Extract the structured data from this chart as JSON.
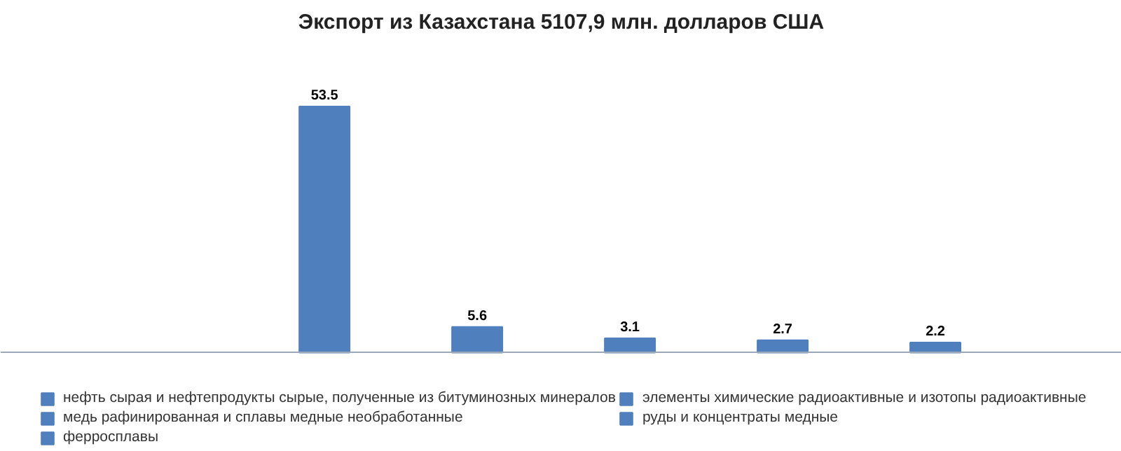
{
  "chart_data": {
    "type": "bar",
    "title": "Экспорт из Казахстана 5107,9 млн. долларов США",
    "categories": [
      null,
      null,
      null,
      null,
      null
    ],
    "stacked": true,
    "series": [
      {
        "name": "нефть сырая и нефтепродукты сырые, полученные из битуминозных минералов",
        "color": "#4f7fbd",
        "values": [
          53.5,
          null,
          null,
          null,
          null
        ]
      },
      {
        "name": "элементы химические радиоактивные и изотопы радиоактивные",
        "color": "#4f7fbd",
        "values": [
          null,
          5.6,
          null,
          null,
          null
        ]
      },
      {
        "name": "медь рафинированная и сплавы медные необработанные",
        "color": "#4f7fbd",
        "values": [
          null,
          null,
          3.1,
          null,
          null
        ]
      },
      {
        "name": "руды и концентраты медные",
        "color": "#4f7fbd",
        "values": [
          null,
          null,
          null,
          2.7,
          null
        ]
      },
      {
        "name": "ферросплавы",
        "color": "#4f7fbd",
        "values": [
          null,
          null,
          null,
          null,
          2.2
        ]
      }
    ],
    "legend": "bottom",
    "tick_labels": false,
    "data_labels": true
  }
}
